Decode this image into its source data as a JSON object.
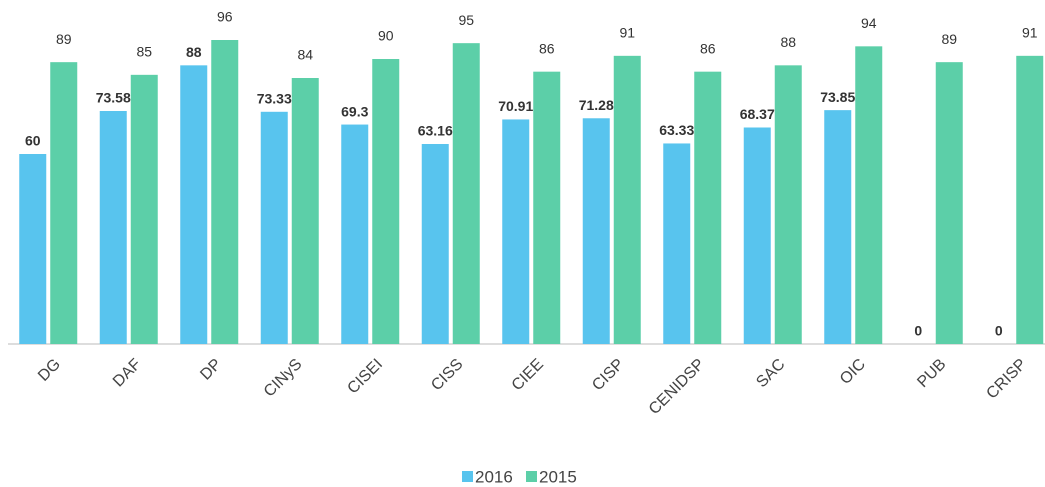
{
  "chart_data": {
    "type": "bar",
    "categories": [
      "DG",
      "DAF",
      "DP",
      "CINyS",
      "CISEI",
      "CISS",
      "CIEE",
      "CISP",
      "CENIDSP",
      "SAC",
      "OIC",
      "PUB",
      "CRISP"
    ],
    "series": [
      {
        "name": "2016",
        "color": "#58c4ee",
        "values": [
          60,
          73.58,
          88,
          73.33,
          69.3,
          63.16,
          70.91,
          71.28,
          63.33,
          68.37,
          73.85,
          0,
          0
        ]
      },
      {
        "name": "2015",
        "color": "#5ccfa8",
        "values": [
          89,
          85,
          96,
          84,
          90,
          95,
          86,
          91,
          86,
          88,
          94,
          89,
          91
        ]
      }
    ],
    "ylim": [
      0,
      108
    ]
  }
}
